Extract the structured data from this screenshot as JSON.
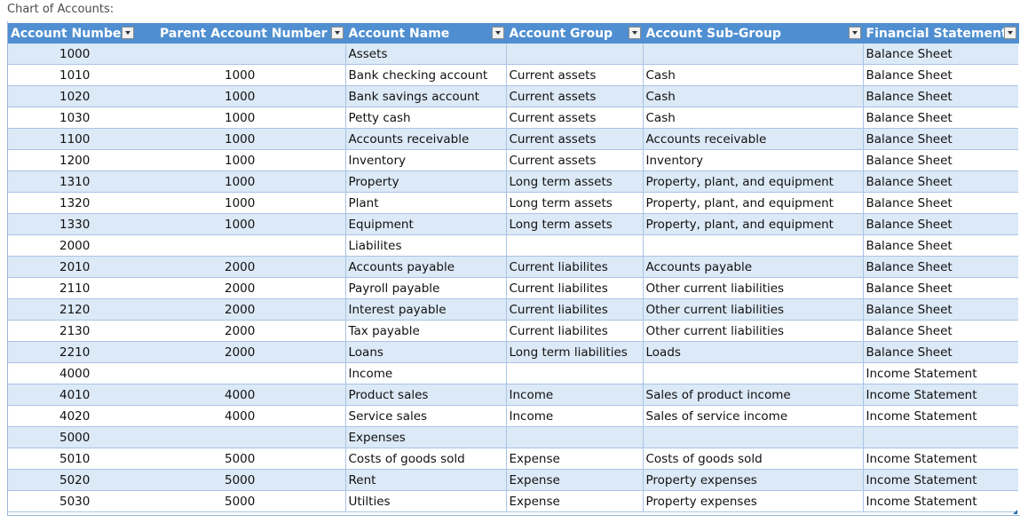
{
  "caption": "Chart of Accounts:",
  "columns": [
    "Account Numbe",
    "Parent Account Number",
    "Account Name",
    "Account Group",
    "Account Sub-Group",
    "Financial Statement"
  ],
  "rows": [
    [
      "1000",
      "",
      "Assets",
      "",
      "",
      "Balance Sheet"
    ],
    [
      "1010",
      "1000",
      "Bank checking account",
      "Current assets",
      "Cash",
      "Balance Sheet"
    ],
    [
      "1020",
      "1000",
      "Bank savings account",
      "Current assets",
      "Cash",
      "Balance Sheet"
    ],
    [
      "1030",
      "1000",
      "Petty cash",
      "Current assets",
      "Cash",
      "Balance Sheet"
    ],
    [
      "1100",
      "1000",
      "Accounts receivable",
      "Current assets",
      "Accounts receivable",
      "Balance Sheet"
    ],
    [
      "1200",
      "1000",
      "Inventory",
      "Current assets",
      "Inventory",
      "Balance Sheet"
    ],
    [
      "1310",
      "1000",
      "Property",
      "Long term assets",
      "Property, plant, and equipment",
      "Balance Sheet"
    ],
    [
      "1320",
      "1000",
      "Plant",
      "Long term assets",
      "Property, plant, and equipment",
      "Balance Sheet"
    ],
    [
      "1330",
      "1000",
      "Equipment",
      "Long term assets",
      "Property, plant, and equipment",
      "Balance Sheet"
    ],
    [
      "2000",
      "",
      "Liabilites",
      "",
      "",
      "Balance Sheet"
    ],
    [
      "2010",
      "2000",
      "Accounts payable",
      "Current liabilites",
      "Accounts payable",
      "Balance Sheet"
    ],
    [
      "2110",
      "2000",
      "Payroll payable",
      "Current liabilites",
      "Other current liabilities",
      "Balance Sheet"
    ],
    [
      "2120",
      "2000",
      "Interest payable",
      "Current liabilites",
      "Other current liabilities",
      "Balance Sheet"
    ],
    [
      "2130",
      "2000",
      "Tax payable",
      "Current liabilites",
      "Other current liabilities",
      "Balance Sheet"
    ],
    [
      "2210",
      "2000",
      "Loans",
      "Long term liabilities",
      "Loads",
      "Balance Sheet"
    ],
    [
      "4000",
      "",
      "Income",
      "",
      "",
      "Income Statement"
    ],
    [
      "4010",
      "4000",
      "Product sales",
      "Income",
      "Sales of product income",
      "Income Statement"
    ],
    [
      "4020",
      "4000",
      "Service sales",
      "Income",
      "Sales of service income",
      "Income Statement"
    ],
    [
      "5000",
      "",
      "Expenses",
      "",
      "",
      ""
    ],
    [
      "5010",
      "5000",
      "Costs of goods sold",
      "Expense",
      "Costs of goods sold",
      "Income Statement"
    ],
    [
      "5020",
      "5000",
      "Rent",
      "Expense",
      "Property expenses",
      "Income Statement"
    ],
    [
      "5030",
      "5000",
      "Utilties",
      "Expense",
      "Property expenses",
      "Income Statement"
    ]
  ],
  "icons": {
    "filter": "filter-dropdown-icon",
    "resize": "resize-handle-icon"
  },
  "colors": {
    "header_bg": "#4f8fd1",
    "band_row": "#dce9f6",
    "border": "#a9c4e6"
  }
}
